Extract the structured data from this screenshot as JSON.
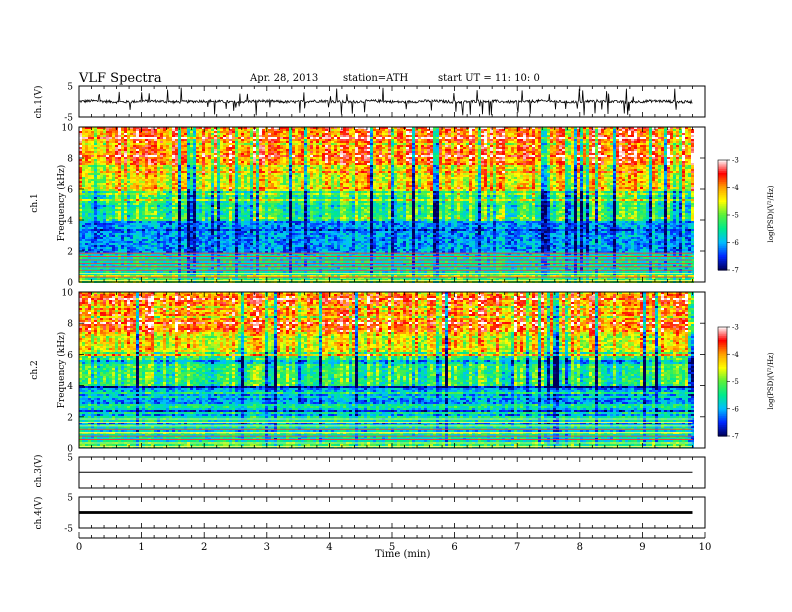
{
  "header": {
    "title": "VLF  Spectra",
    "date": "Apr. 28, 2013",
    "station": "station=ATH",
    "start": "start  UT  =    11: 10: 0"
  },
  "chart_data": [
    {
      "type": "line",
      "panel": "ch1-waveform",
      "ylabel": "ch.1(V)",
      "ylim": [
        -5,
        5
      ],
      "yticks": [
        "5",
        "-5"
      ],
      "x_range_min": [
        0,
        10
      ],
      "data_extent_min": [
        0,
        9.8
      ],
      "trace": "noisy waveform with baseline near 0 V and frequent impulsive spikes",
      "color": "#000000"
    },
    {
      "type": "heatmap",
      "panel": "ch1-spectrogram",
      "ylabel_top": "ch.1",
      "ylabel": "Frequency  (kHz)",
      "ylim": [
        0,
        10
      ],
      "yticks": [
        "0",
        "2",
        "4",
        "6",
        "8",
        "10"
      ],
      "x_range_min": [
        0,
        10
      ],
      "data_extent_min": [
        0,
        9.8
      ],
      "colorbar": {
        "label": "log(PSD)(V²/Hz)",
        "range": [
          -7,
          -3
        ],
        "ticks": [
          "-3",
          "-4",
          "-5",
          "-6",
          "-7"
        ]
      },
      "bands": [
        {
          "freq_khz": [
            0,
            0.5
          ],
          "level": "mixed lines"
        },
        {
          "freq_khz": [
            0.5,
            2
          ],
          "level": -5.5
        },
        {
          "freq_khz": [
            2,
            4
          ],
          "level": -6.0
        },
        {
          "freq_khz": [
            4,
            6
          ],
          "level": -5.2
        },
        {
          "freq_khz": [
            6,
            10
          ],
          "level": -3.8
        }
      ]
    },
    {
      "type": "heatmap",
      "panel": "ch2-spectrogram",
      "ylabel_top": "ch.2",
      "ylabel": "Frequency  (kHz)",
      "ylim": [
        0,
        10
      ],
      "yticks": [
        "0",
        "2",
        "4",
        "6",
        "8",
        "10"
      ],
      "x_range_min": [
        0,
        10
      ],
      "data_extent_min": [
        0,
        9.8
      ],
      "colorbar": {
        "label": "log(PSD)(V²/Hz)",
        "range": [
          -7,
          -3
        ],
        "ticks": [
          "-3",
          "-4",
          "-5",
          "-6",
          "-7"
        ]
      },
      "bands": [
        {
          "freq_khz": [
            0,
            0.5
          ],
          "level": "mixed lines"
        },
        {
          "freq_khz": [
            0.5,
            2
          ],
          "level": -5.5
        },
        {
          "freq_khz": [
            2,
            4
          ],
          "level": -5.8
        },
        {
          "freq_khz": [
            4,
            6
          ],
          "level": -5.2
        },
        {
          "freq_khz": [
            6,
            10
          ],
          "level": -3.8
        }
      ]
    },
    {
      "type": "line",
      "panel": "ch3-waveform",
      "ylabel": "ch.3(V)",
      "ylim": [
        -5,
        5
      ],
      "yticks": [
        "5"
      ],
      "x_range_min": [
        0,
        10
      ],
      "data_extent_min": [
        0,
        9.8
      ],
      "trace": "flat trace near 0 V",
      "color": "#000000"
    },
    {
      "type": "line",
      "panel": "ch4-waveform",
      "ylabel": "ch.4(V)",
      "ylim": [
        -5,
        5
      ],
      "yticks": [
        "5",
        "-5"
      ],
      "x_range_min": [
        0,
        10
      ],
      "data_extent_min": [
        0,
        9.8
      ],
      "trace": "thick band near 0 V",
      "color": "#000000"
    }
  ],
  "xaxis": {
    "label": "Time  (min)",
    "ticks": [
      "0",
      "1",
      "2",
      "3",
      "4",
      "5",
      "6",
      "7",
      "8",
      "9",
      "10"
    ],
    "range": [
      0,
      10
    ]
  },
  "colorbar_colors": [
    "#ffffff",
    "#ff0000",
    "#ffaa00",
    "#ffff00",
    "#00ff66",
    "#00ccff",
    "#0033ff",
    "#000066"
  ]
}
